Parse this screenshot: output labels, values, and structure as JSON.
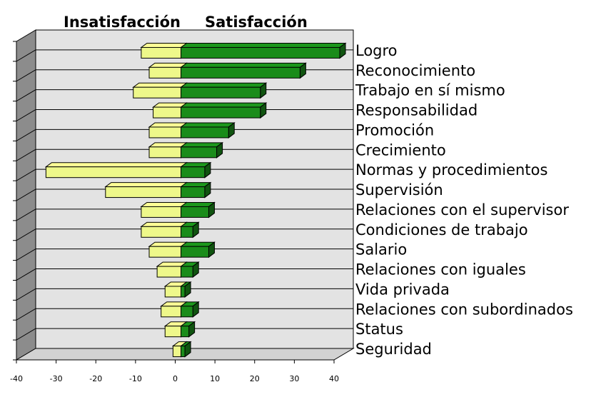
{
  "chart_data": {
    "type": "bar",
    "headers": {
      "left": "Insatisfacción",
      "right": "Satisfacción"
    },
    "categories": [
      "Logro",
      "Reconocimiento",
      "Trabajo en sí mismo",
      "Responsabilidad",
      "Promoción",
      "Crecimiento",
      "Normas y procedimientos",
      "Supervisión",
      "Relaciones con el supervisor",
      "Condiciones de trabajo",
      "Salario",
      "Relaciones con iguales",
      "Vida privada",
      "Relaciones con subordinados",
      "Status",
      "Seguridad"
    ],
    "series": [
      {
        "values": [
          -10,
          -8,
          -12,
          -7,
          -8,
          -8,
          -34,
          -19,
          -10,
          -10,
          -8,
          -6,
          -4,
          -5,
          -4,
          -2
        ],
        "color": "#eef88a"
      },
      {
        "values": [
          40,
          30,
          20,
          20,
          12,
          9,
          6,
          6,
          7,
          3,
          7,
          3,
          1,
          3,
          2,
          1
        ],
        "color": "#1a8c1a"
      }
    ],
    "xlim": [
      -40,
      40
    ],
    "xticks": [
      "-40",
      "-30",
      "-20",
      "-10",
      "0",
      "10",
      "20",
      "30",
      "40"
    ],
    "grid": true,
    "legend": "none"
  }
}
